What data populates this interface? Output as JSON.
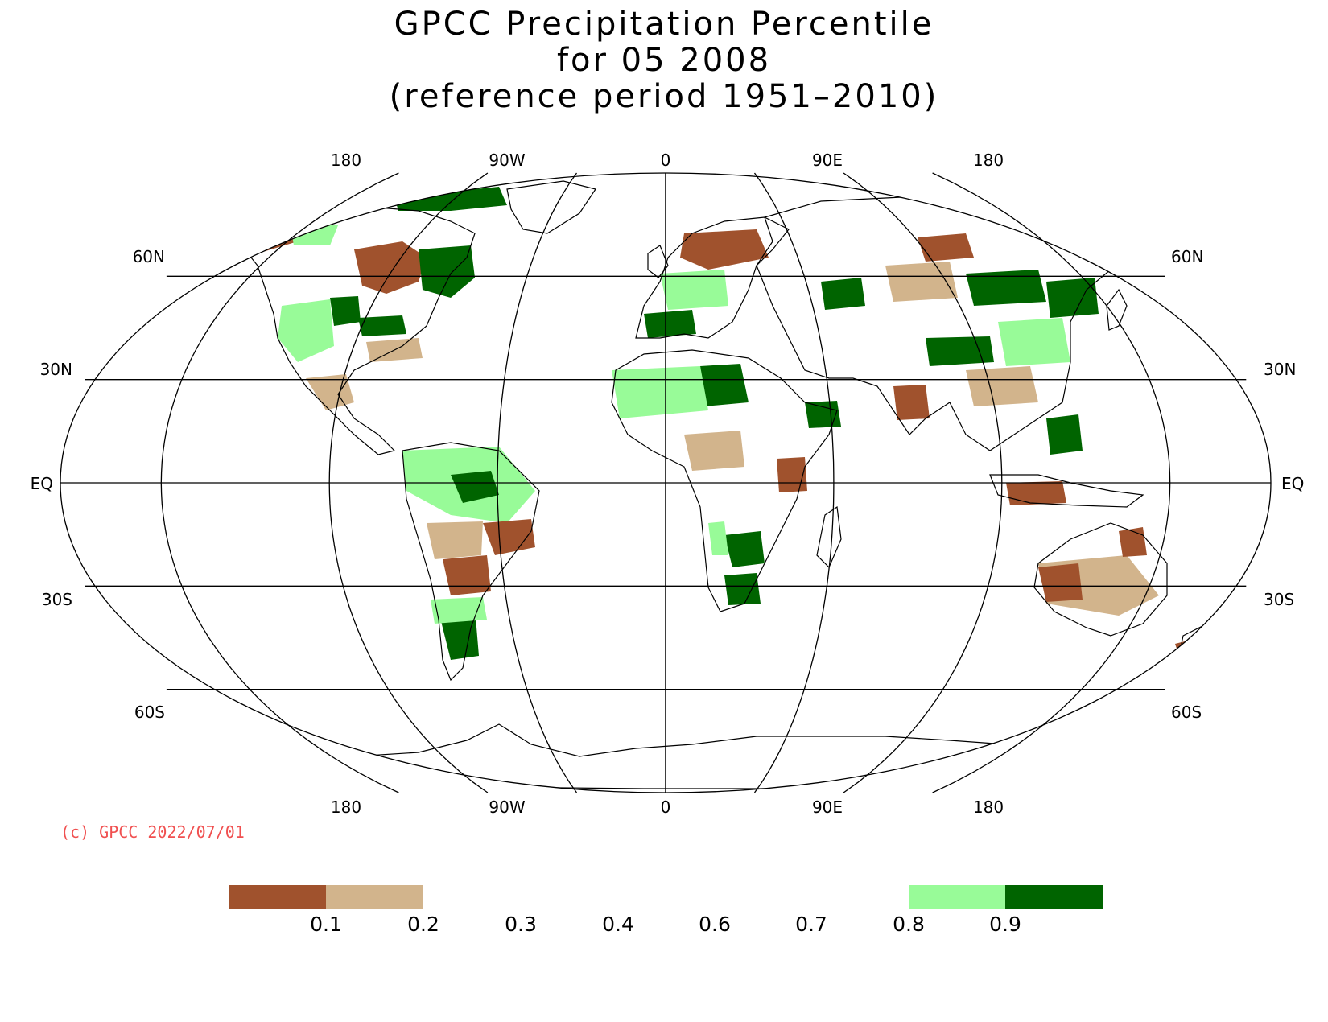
{
  "title": {
    "line1": "GPCC Precipitation Percentile",
    "line2": "for 05 2008",
    "line3": "(reference period 1951–2010)"
  },
  "map": {
    "projection": "robinson",
    "top_lon_labels": [
      "180",
      "90W",
      "0",
      "90E",
      "180"
    ],
    "bottom_lon_labels": [
      "180",
      "90W",
      "0",
      "90E",
      "180"
    ],
    "lat_labels": [
      "60N",
      "30N",
      "EQ",
      "30S",
      "60S"
    ],
    "graticule_lat": [
      -60,
      -30,
      0,
      30,
      60
    ],
    "graticule_lon": [
      -150,
      -100,
      -50,
      0,
      50,
      100,
      150
    ],
    "region_labels": {
      "brown": "Below 0.1 percentile region",
      "tan": "0.1–0.2 percentile region",
      "lightgreen": "0.8–0.9 percentile region",
      "darkgreen": "Above 0.9 percentile region"
    },
    "colors": {
      "dry_strong": "#a0522d",
      "dry": "#d2b48c",
      "wet": "#98fb98",
      "wet_strong": "#006400",
      "line": "#000000"
    }
  },
  "copyright": "(c) GPCC 2022/07/01",
  "legend": {
    "ticks": [
      "0.1",
      "0.2",
      "0.3",
      "0.4",
      "0.6",
      "0.7",
      "0.8",
      "0.9"
    ],
    "swatches": [
      {
        "from": 0.0,
        "to": 0.1,
        "color": "#a0522d"
      },
      {
        "from": 0.1,
        "to": 0.2,
        "color": "#d2b48c"
      },
      {
        "from": 0.8,
        "to": 0.9,
        "color": "#98fb98"
      },
      {
        "from": 0.9,
        "to": 1.0,
        "color": "#006400"
      }
    ]
  }
}
